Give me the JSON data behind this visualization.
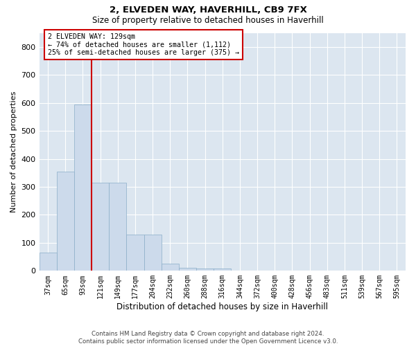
{
  "title1": "2, ELVEDEN WAY, HAVERHILL, CB9 7FX",
  "title2": "Size of property relative to detached houses in Haverhill",
  "xlabel": "Distribution of detached houses by size in Haverhill",
  "ylabel": "Number of detached properties",
  "footer1": "Contains HM Land Registry data © Crown copyright and database right 2024.",
  "footer2": "Contains public sector information licensed under the Open Government Licence v3.0.",
  "bar_color": "#ccdaeb",
  "bar_edge_color": "#8aaec8",
  "annotation_line_color": "#cc0000",
  "annotation_box_color": "#cc0000",
  "background_color": "#dce6f0",
  "categories": [
    "37sqm",
    "65sqm",
    "93sqm",
    "121sqm",
    "149sqm",
    "177sqm",
    "204sqm",
    "232sqm",
    "260sqm",
    "288sqm",
    "316sqm",
    "344sqm",
    "372sqm",
    "400sqm",
    "428sqm",
    "456sqm",
    "483sqm",
    "511sqm",
    "539sqm",
    "567sqm",
    "595sqm"
  ],
  "values": [
    65,
    355,
    595,
    315,
    315,
    130,
    130,
    25,
    10,
    8,
    8,
    0,
    0,
    0,
    0,
    0,
    0,
    0,
    0,
    0,
    0
  ],
  "property_size_label": "2 ELVEDEN WAY: 129sqm",
  "annotation_line1": "← 74% of detached houses are smaller (1,112)",
  "annotation_line2": "25% of semi-detached houses are larger (375) →",
  "vline_x": 3.5,
  "ylim": [
    0,
    850
  ],
  "yticks": [
    0,
    100,
    200,
    300,
    400,
    500,
    600,
    700,
    800
  ]
}
